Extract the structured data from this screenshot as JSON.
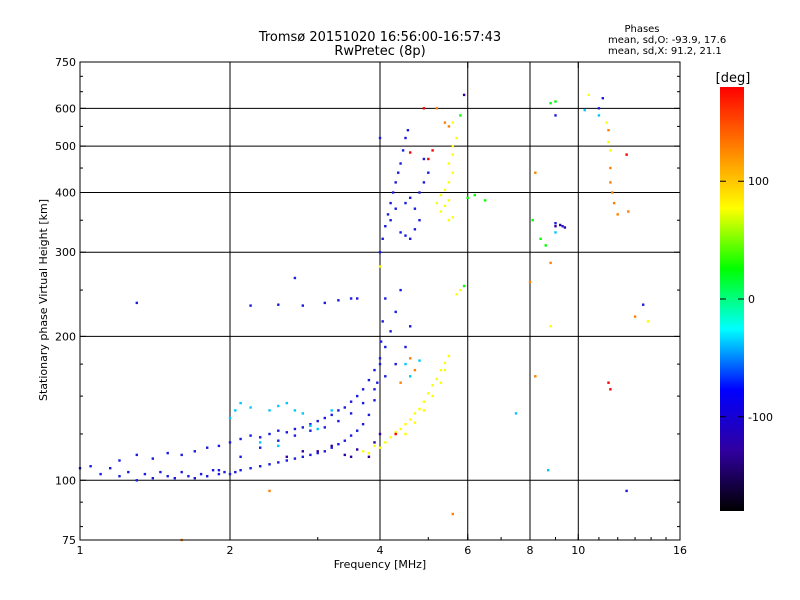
{
  "chart_data": {
    "type": "scatter",
    "title": "Tromsø 20151020 16:56:00-16:57:43",
    "subtitle": "RwPretec (8p)",
    "xlabel": "Frequency [MHz]",
    "ylabel": "Stationary phase Virtual Height [km]",
    "x_scale": "log",
    "y_scale": "log",
    "xlim": [
      1,
      16
    ],
    "ylim": [
      75,
      750
    ],
    "x_ticks": [
      1,
      2,
      4,
      6,
      8,
      10,
      16
    ],
    "y_ticks": [
      75,
      100,
      200,
      300,
      400,
      500,
      600,
      750
    ],
    "x_gridlines": [
      2,
      4,
      6,
      8,
      10
    ],
    "y_gridlines": [
      100,
      200,
      300,
      400,
      500,
      600
    ],
    "grid": true,
    "stats": {
      "heading": "Phases",
      "line_o": "mean, sd,O: -93.9, 17.6",
      "line_x": "mean, sd,X:  91.2, 21.1"
    },
    "colorbar": {
      "label": "[deg]",
      "range": [
        -180,
        180
      ],
      "ticks": [
        100,
        0,
        -100
      ],
      "placement": "right",
      "colors": [
        "#ff0000",
        "#ff8000",
        "#ffff00",
        "#00ff00",
        "#00ffff",
        "#0000ff",
        "#3000a0",
        "#000000"
      ]
    },
    "series": [
      {
        "color": "#1a1ae0",
        "points": [
          [
            1.0,
            106
          ],
          [
            1.05,
            107
          ],
          [
            1.1,
            103
          ],
          [
            1.15,
            106
          ],
          [
            1.2,
            102
          ],
          [
            1.25,
            104
          ],
          [
            1.3,
            100
          ],
          [
            1.35,
            103
          ],
          [
            1.4,
            101
          ],
          [
            1.45,
            104
          ],
          [
            1.5,
            102
          ],
          [
            1.55,
            101
          ],
          [
            1.6,
            104
          ],
          [
            1.65,
            102
          ],
          [
            1.7,
            101
          ],
          [
            1.75,
            103
          ],
          [
            1.8,
            102
          ],
          [
            1.85,
            105
          ],
          [
            1.9,
            103
          ],
          [
            1.95,
            104
          ],
          [
            2.0,
            103
          ],
          [
            2.05,
            104
          ],
          [
            2.1,
            105
          ],
          [
            2.2,
            106
          ],
          [
            2.3,
            107
          ],
          [
            2.4,
            108
          ],
          [
            2.5,
            109
          ],
          [
            2.6,
            110
          ],
          [
            2.7,
            111
          ],
          [
            2.8,
            112
          ],
          [
            2.9,
            113
          ],
          [
            3.0,
            114
          ],
          [
            3.1,
            115
          ],
          [
            3.2,
            117
          ],
          [
            3.3,
            119
          ],
          [
            3.4,
            121
          ],
          [
            3.5,
            124
          ],
          [
            3.6,
            127
          ],
          [
            3.7,
            131
          ],
          [
            3.8,
            137
          ],
          [
            3.9,
            147
          ],
          [
            3.95,
            160
          ],
          [
            4.0,
            175
          ],
          [
            4.02,
            195
          ],
          [
            4.05,
            215
          ],
          [
            4.1,
            240
          ],
          [
            1.2,
            110
          ],
          [
            1.3,
            113
          ],
          [
            1.4,
            111
          ],
          [
            1.5,
            114
          ],
          [
            1.6,
            113
          ],
          [
            1.7,
            115
          ],
          [
            1.8,
            117
          ],
          [
            1.9,
            118
          ],
          [
            2.0,
            120
          ],
          [
            2.1,
            122
          ],
          [
            2.2,
            124
          ],
          [
            2.3,
            123
          ],
          [
            2.4,
            125
          ],
          [
            2.5,
            127
          ],
          [
            2.6,
            126
          ],
          [
            2.7,
            128
          ],
          [
            2.8,
            129
          ],
          [
            2.9,
            131
          ],
          [
            3.0,
            133
          ],
          [
            3.1,
            135
          ],
          [
            3.2,
            137
          ],
          [
            3.3,
            140
          ],
          [
            3.4,
            142
          ],
          [
            3.5,
            146
          ],
          [
            3.6,
            150
          ],
          [
            3.7,
            155
          ],
          [
            3.8,
            162
          ],
          [
            3.9,
            170
          ],
          [
            4.0,
            180
          ],
          [
            4.1,
            190
          ],
          [
            4.2,
            205
          ],
          [
            4.3,
            225
          ],
          [
            4.4,
            250
          ],
          [
            1.9,
            105
          ],
          [
            2.1,
            112
          ],
          [
            2.3,
            117
          ],
          [
            2.5,
            121
          ],
          [
            2.7,
            124
          ],
          [
            2.9,
            127
          ],
          [
            3.1,
            129
          ],
          [
            3.3,
            133
          ],
          [
            3.5,
            138
          ],
          [
            3.7,
            145
          ],
          [
            3.9,
            155
          ],
          [
            4.1,
            165
          ],
          [
            4.3,
            175
          ],
          [
            4.5,
            190
          ],
          [
            4.6,
            210
          ],
          [
            1.3,
            235
          ],
          [
            2.2,
            232
          ],
          [
            2.5,
            233
          ],
          [
            2.8,
            232
          ],
          [
            3.1,
            235
          ],
          [
            3.3,
            238
          ],
          [
            3.5,
            240
          ],
          [
            3.6,
            240
          ],
          [
            2.7,
            265
          ],
          [
            4.0,
            300
          ],
          [
            4.05,
            320
          ],
          [
            4.1,
            340
          ],
          [
            4.15,
            360
          ],
          [
            4.2,
            380
          ],
          [
            4.25,
            400
          ],
          [
            4.3,
            420
          ],
          [
            4.35,
            440
          ],
          [
            4.4,
            460
          ],
          [
            4.45,
            490
          ],
          [
            4.5,
            520
          ],
          [
            4.55,
            540
          ],
          [
            4.4,
            330
          ],
          [
            4.5,
            325
          ],
          [
            4.6,
            320
          ],
          [
            4.7,
            335
          ],
          [
            4.8,
            350
          ],
          [
            4.5,
            380
          ],
          [
            4.6,
            390
          ],
          [
            4.7,
            370
          ],
          [
            4.8,
            400
          ],
          [
            4.9,
            420
          ],
          [
            5.0,
            440
          ],
          [
            4.0,
            520
          ],
          [
            4.9,
            470
          ],
          [
            4.2,
            350
          ],
          [
            4.3,
            370
          ],
          [
            11.0,
            600
          ],
          [
            11.2,
            630
          ],
          [
            9.3,
            340
          ],
          [
            9.0,
            345
          ],
          [
            12.5,
            95
          ],
          [
            13.5,
            233
          ],
          [
            9.0,
            580
          ]
        ]
      },
      {
        "color": "#00c8ff",
        "points": [
          [
            2.0,
            135
          ],
          [
            2.05,
            140
          ],
          [
            2.1,
            145
          ],
          [
            2.2,
            142
          ],
          [
            2.4,
            140
          ],
          [
            2.5,
            143
          ],
          [
            2.6,
            145
          ],
          [
            2.7,
            140
          ],
          [
            2.8,
            138
          ],
          [
            2.9,
            130
          ],
          [
            3.0,
            128
          ],
          [
            2.3,
            120
          ],
          [
            2.5,
            118
          ],
          [
            3.2,
            140
          ],
          [
            4.5,
            175
          ],
          [
            4.6,
            165
          ],
          [
            4.8,
            178
          ],
          [
            7.5,
            138
          ],
          [
            8.7,
            105
          ],
          [
            10.3,
            595
          ],
          [
            11.0,
            580
          ],
          [
            9.0,
            330
          ]
        ]
      },
      {
        "color": "#ffff00",
        "points": [
          [
            3.7,
            115
          ],
          [
            3.8,
            114
          ],
          [
            3.9,
            118
          ],
          [
            4.0,
            117
          ],
          [
            4.1,
            120
          ],
          [
            4.2,
            123
          ],
          [
            4.3,
            126
          ],
          [
            4.4,
            128
          ],
          [
            4.5,
            131
          ],
          [
            4.6,
            134
          ],
          [
            4.7,
            138
          ],
          [
            4.8,
            141
          ],
          [
            4.9,
            146
          ],
          [
            5.0,
            152
          ],
          [
            5.1,
            158
          ],
          [
            5.2,
            163
          ],
          [
            5.3,
            170
          ],
          [
            5.4,
            176
          ],
          [
            5.5,
            182
          ],
          [
            4.5,
            125
          ],
          [
            4.7,
            132
          ],
          [
            4.9,
            140
          ],
          [
            5.1,
            150
          ],
          [
            5.3,
            160
          ],
          [
            5.4,
            170
          ],
          [
            5.2,
            380
          ],
          [
            5.3,
            395
          ],
          [
            5.4,
            405
          ],
          [
            5.5,
            420
          ],
          [
            5.6,
            440
          ],
          [
            5.5,
            460
          ],
          [
            5.6,
            480
          ],
          [
            5.6,
            500
          ],
          [
            5.7,
            520
          ],
          [
            5.3,
            365
          ],
          [
            5.4,
            375
          ],
          [
            5.5,
            385
          ],
          [
            5.6,
            355
          ],
          [
            5.5,
            350
          ],
          [
            5.7,
            245
          ],
          [
            5.8,
            250
          ],
          [
            5.6,
            560
          ],
          [
            4.0,
            280
          ],
          [
            8.8,
            210
          ],
          [
            11.4,
            560
          ],
          [
            11.5,
            510
          ],
          [
            11.6,
            490
          ],
          [
            10.5,
            640
          ],
          [
            13.8,
            215
          ]
        ]
      },
      {
        "color": "#ff8000",
        "points": [
          [
            4.6,
            180
          ],
          [
            4.7,
            170
          ],
          [
            4.4,
            160
          ],
          [
            5.2,
            600
          ],
          [
            5.4,
            560
          ],
          [
            5.5,
            550
          ],
          [
            11.5,
            540
          ],
          [
            11.6,
            450
          ],
          [
            11.6,
            420
          ],
          [
            11.7,
            400
          ],
          [
            11.8,
            380
          ],
          [
            12.0,
            360
          ],
          [
            12.6,
            365
          ],
          [
            8.0,
            260
          ],
          [
            8.2,
            165
          ],
          [
            8.2,
            440
          ],
          [
            8.8,
            285
          ],
          [
            1.6,
            75
          ],
          [
            5.6,
            85
          ],
          [
            13.0,
            220
          ],
          [
            2.4,
            95
          ]
        ]
      },
      {
        "color": "#ff0000",
        "points": [
          [
            5.0,
            470
          ],
          [
            5.1,
            490
          ],
          [
            4.6,
            485
          ],
          [
            4.3,
            125
          ],
          [
            12.5,
            480
          ],
          [
            11.5,
            160
          ],
          [
            11.6,
            155
          ],
          [
            4.9,
            600
          ]
        ]
      },
      {
        "color": "#00ff00",
        "points": [
          [
            6.0,
            390
          ],
          [
            6.2,
            395
          ],
          [
            6.5,
            385
          ],
          [
            5.9,
            255
          ],
          [
            8.1,
            350
          ],
          [
            8.4,
            320
          ],
          [
            8.6,
            310
          ],
          [
            9.0,
            620
          ],
          [
            5.8,
            580
          ],
          [
            8.8,
            615
          ]
        ]
      },
      {
        "color": "#3000a0",
        "points": [
          [
            3.0,
            115
          ],
          [
            3.2,
            118
          ],
          [
            3.4,
            113
          ],
          [
            3.5,
            112
          ],
          [
            3.6,
            116
          ],
          [
            3.8,
            112
          ],
          [
            3.9,
            120
          ],
          [
            4.0,
            125
          ],
          [
            2.6,
            112
          ],
          [
            2.8,
            115
          ],
          [
            9.0,
            340
          ],
          [
            9.2,
            342
          ],
          [
            9.4,
            338
          ],
          [
            5.9,
            640
          ]
        ]
      }
    ]
  }
}
